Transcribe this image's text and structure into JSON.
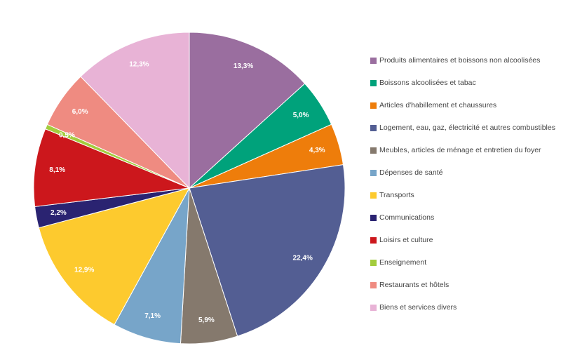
{
  "chart_data": {
    "type": "pie",
    "title": "",
    "legend_position": "right",
    "start_angle_deg": 0,
    "direction": "clockwise",
    "slices": [
      {
        "label": "Produits alimentaires et boissons non alcoolisées",
        "value": 13.3,
        "display": "13,3%",
        "color": "#9A6E9F"
      },
      {
        "label": "Boissons alcoolisées et tabac",
        "value": 5.0,
        "display": "5,0%",
        "color": "#00A27B"
      },
      {
        "label": "Articles d'habillement et chaussures",
        "value": 4.3,
        "display": "4,3%",
        "color": "#EE7D0B"
      },
      {
        "label": "Logement, eau, gaz, électricité et autres combustibles",
        "value": 22.4,
        "display": "22,4%",
        "color": "#535E93"
      },
      {
        "label": "Meubles, articles de ménage et entretien du foyer",
        "value": 5.9,
        "display": "5,9%",
        "color": "#85796D"
      },
      {
        "label": "Dépenses de santé",
        "value": 7.1,
        "display": "7,1%",
        "color": "#77A5C9"
      },
      {
        "label": "Transports",
        "value": 12.9,
        "display": "12,9%",
        "color": "#FDCA2E"
      },
      {
        "label": "Communications",
        "value": 2.2,
        "display": "2,2%",
        "color": "#2A2371"
      },
      {
        "label": "Loisirs et culture",
        "value": 8.1,
        "display": "8,1%",
        "color": "#CC171C"
      },
      {
        "label": "Enseignement",
        "value": 0.5,
        "display": "0,5%",
        "color": "#A3CC3D"
      },
      {
        "label": "Restaurants et hôtels",
        "value": 6.0,
        "display": "6,0%",
        "color": "#EF8B81"
      },
      {
        "label": "Biens et services divers",
        "value": 12.3,
        "display": "12,3%",
        "color": "#E8B3D6"
      }
    ]
  }
}
